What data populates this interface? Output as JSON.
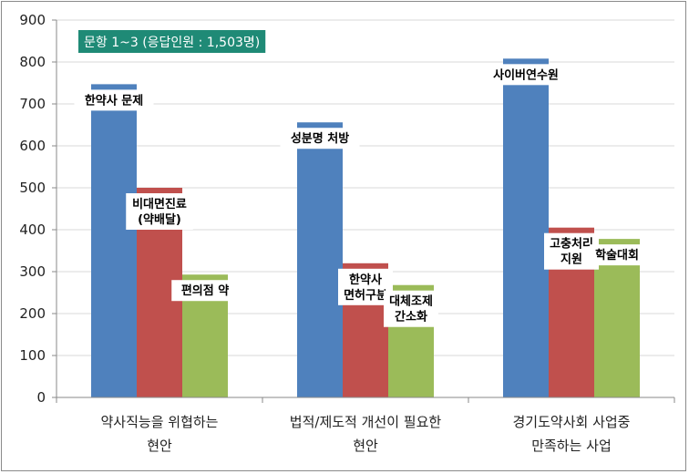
{
  "chart_data": {
    "type": "bar",
    "title": "",
    "xlabel": "",
    "ylabel": "",
    "ylim": [
      0,
      900
    ],
    "yticks": [
      0,
      100,
      200,
      300,
      400,
      500,
      600,
      700,
      800,
      900
    ],
    "grid": true,
    "legend": "none",
    "annotation": "문항 1~3 (응답인원 : 1,503명)",
    "colors": {
      "blue": "#4f81bd",
      "red": "#c0504d",
      "green": "#9bbb59",
      "note_bg": "#1f8a76",
      "grid": "#d9d9d9",
      "axis": "#8a8a8a"
    },
    "categories": [
      [
        "약사직능을 위협하는",
        "현안"
      ],
      [
        "법적/제도적 개선이 필요한",
        "현안"
      ],
      [
        "경기도약사회 사업중",
        "만족하는 사업"
      ]
    ],
    "groups": [
      {
        "bars": [
          {
            "value": 747,
            "color": "blue",
            "label": [
              "한약사 문제"
            ]
          },
          {
            "value": 500,
            "color": "red",
            "label": [
              "비대면진료",
              "(약배달)"
            ]
          },
          {
            "value": 293,
            "color": "green",
            "label": [
              "편의점 약"
            ]
          }
        ]
      },
      {
        "bars": [
          {
            "value": 656,
            "color": "blue",
            "label": [
              "성분명 처방"
            ]
          },
          {
            "value": 320,
            "color": "red",
            "label": [
              "한약사",
              "면허구분"
            ]
          },
          {
            "value": 268,
            "color": "green",
            "label": [
              "대체조제",
              "간소화"
            ]
          }
        ]
      },
      {
        "bars": [
          {
            "value": 808,
            "color": "blue",
            "label": [
              "사이버연수원"
            ]
          },
          {
            "value": 405,
            "color": "red",
            "label": [
              "고충처리",
              "지원"
            ]
          },
          {
            "value": 378,
            "color": "green",
            "label": [
              "학술대회"
            ]
          }
        ]
      }
    ]
  }
}
